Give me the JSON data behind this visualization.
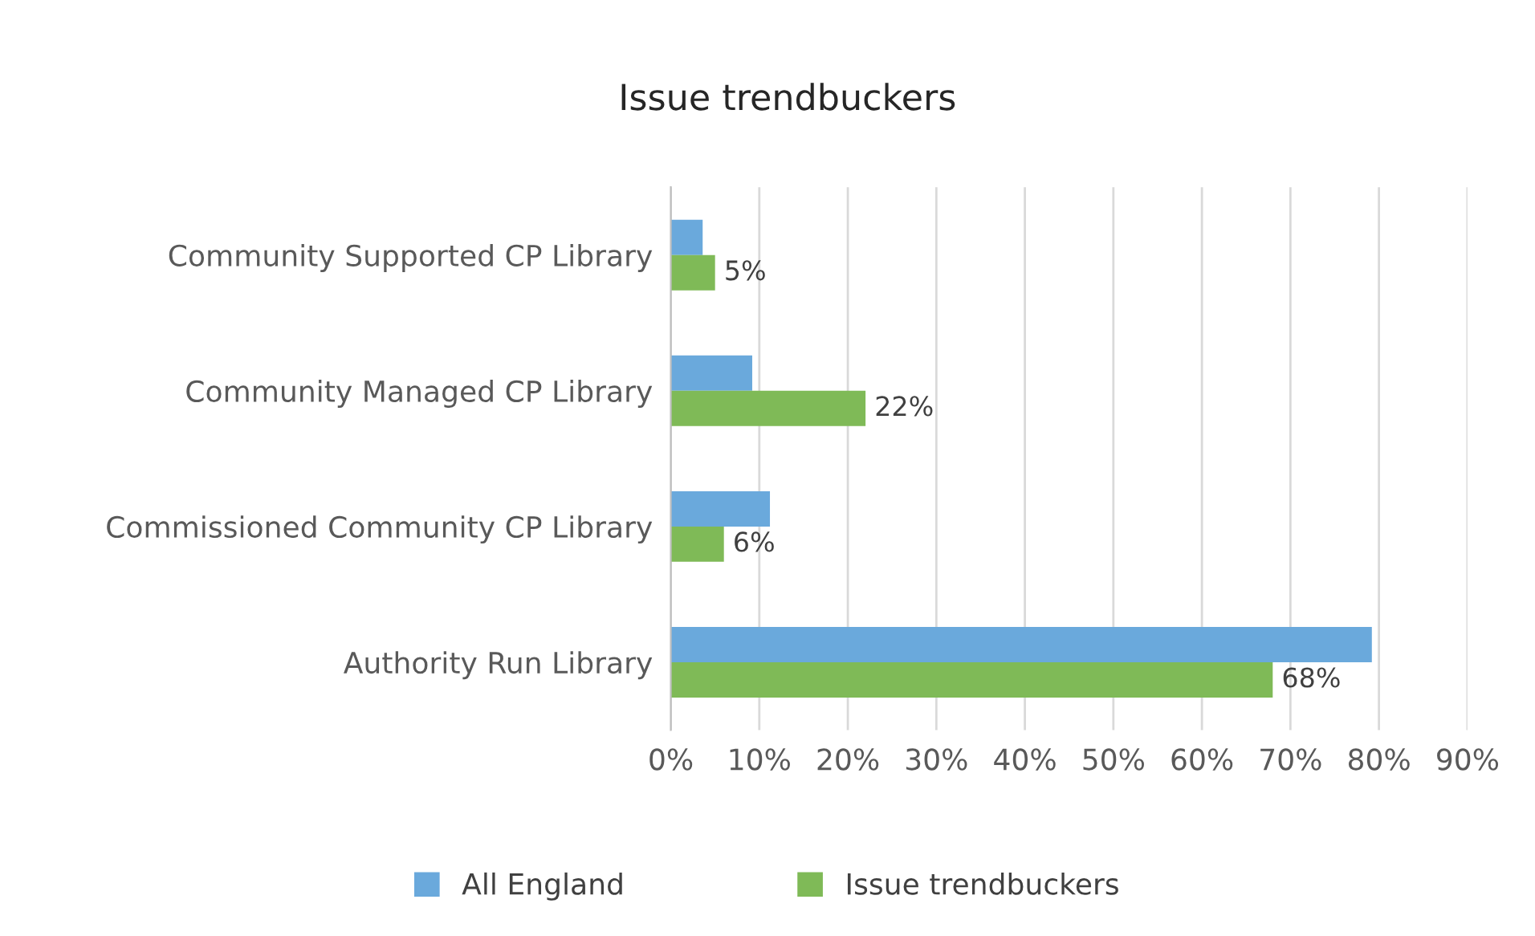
{
  "chart_data": {
    "type": "bar",
    "orientation": "horizontal",
    "title": "Issue trendbuckers",
    "categories": [
      "Community Supported CP Library",
      "Community Managed CP Library",
      "Commissioned Community CP Library",
      "Authority Run Library"
    ],
    "series": [
      {
        "name": "All England",
        "color": "#6aa9dc",
        "values": [
          3.6,
          9.2,
          11.2,
          79.2
        ]
      },
      {
        "name": "Issue trendbuckers",
        "color": "#7fba57",
        "values": [
          5,
          22,
          6,
          68
        ],
        "value_labels": [
          "5%",
          "22%",
          "6%",
          "68%"
        ]
      }
    ],
    "xlim": [
      0,
      90
    ],
    "xticks": [
      {
        "value": 0,
        "label": "0%"
      },
      {
        "value": 10,
        "label": "10%"
      },
      {
        "value": 20,
        "label": "20%"
      },
      {
        "value": 30,
        "label": "30%"
      },
      {
        "value": 40,
        "label": "40%"
      },
      {
        "value": 50,
        "label": "50%"
      },
      {
        "value": 60,
        "label": "60%"
      },
      {
        "value": 70,
        "label": "70%"
      },
      {
        "value": 80,
        "label": "80%"
      },
      {
        "value": 90,
        "label": "90%"
      }
    ],
    "grid": "x",
    "legend": "bottom"
  }
}
